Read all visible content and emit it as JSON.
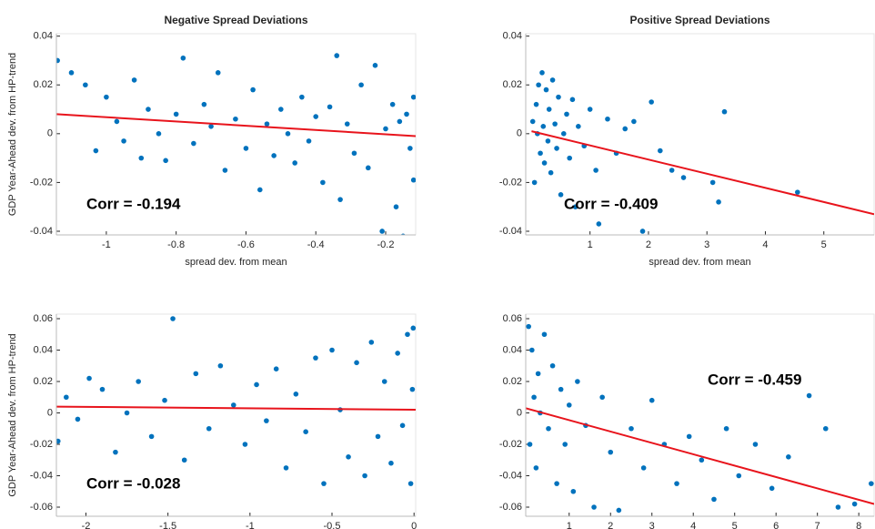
{
  "chart_data": [
    {
      "type": "scatter",
      "title": "Negative Spread Deviations",
      "xlabel": "spread dev. from mean",
      "ylabel": "GDP Year-Ahead dev. from HP-trend",
      "annotation": "Corr = -0.194",
      "color": "#0072bd",
      "xlim": [
        -1.143,
        -0.114
      ],
      "ylim": [
        -0.0415,
        0.041
      ],
      "xticks": [
        -1,
        -0.8,
        -0.6,
        -0.4,
        -0.2
      ],
      "yticks": [
        -0.04,
        -0.02,
        0,
        0.02,
        0.04
      ],
      "x": [
        -1.14,
        -1.1,
        -1.06,
        -1.03,
        -1.0,
        -0.97,
        -0.95,
        -0.92,
        -0.9,
        -0.88,
        -0.85,
        -0.83,
        -0.8,
        -0.78,
        -0.75,
        -0.72,
        -0.7,
        -0.68,
        -0.66,
        -0.63,
        -0.6,
        -0.58,
        -0.56,
        -0.54,
        -0.52,
        -0.5,
        -0.48,
        -0.46,
        -0.44,
        -0.42,
        -0.4,
        -0.38,
        -0.36,
        -0.34,
        -0.33,
        -0.31,
        -0.29,
        -0.27,
        -0.25,
        -0.23,
        -0.21,
        -0.2,
        -0.18,
        -0.17,
        -0.16,
        -0.15,
        -0.14,
        -0.13,
        -0.12,
        -0.12
      ],
      "y": [
        0.03,
        0.025,
        0.02,
        -0.007,
        0.015,
        0.005,
        -0.003,
        0.022,
        -0.01,
        0.01,
        0.0,
        -0.011,
        0.008,
        0.031,
        -0.004,
        0.012,
        0.003,
        0.025,
        -0.015,
        0.006,
        -0.006,
        0.018,
        -0.023,
        0.004,
        -0.009,
        0.01,
        0.0,
        -0.012,
        0.015,
        -0.003,
        0.007,
        -0.02,
        0.011,
        0.032,
        -0.027,
        0.004,
        -0.008,
        0.02,
        -0.014,
        0.028,
        -0.04,
        0.002,
        0.012,
        -0.03,
        0.005,
        -0.042,
        0.008,
        -0.006,
        0.015,
        -0.019
      ],
      "fit": {
        "x": [
          -1.143,
          -0.114
        ],
        "y": [
          0.008,
          -0.001
        ],
        "color": "#e8141c"
      }
    },
    {
      "type": "scatter",
      "title": "Positive Spread Deviations",
      "xlabel": "spread dev. from mean",
      "annotation": "Corr = -0.409",
      "color": "#0072bd",
      "xlim": [
        -0.1,
        5.86
      ],
      "ylim": [
        -0.0415,
        0.041
      ],
      "xticks": [
        1,
        2,
        3,
        4,
        5
      ],
      "yticks": [
        -0.04,
        -0.02,
        0,
        0.02,
        0.04
      ],
      "x": [
        0.02,
        0.05,
        0.08,
        0.1,
        0.12,
        0.15,
        0.18,
        0.2,
        0.22,
        0.25,
        0.28,
        0.3,
        0.33,
        0.36,
        0.4,
        0.43,
        0.46,
        0.5,
        0.55,
        0.6,
        0.65,
        0.7,
        0.75,
        0.8,
        0.9,
        1.0,
        1.1,
        1.15,
        1.3,
        1.45,
        1.6,
        1.75,
        1.9,
        2.05,
        2.2,
        2.4,
        2.6,
        3.1,
        3.2,
        3.3,
        4.55
      ],
      "y": [
        0.005,
        -0.02,
        0.012,
        0.0,
        0.02,
        -0.008,
        0.025,
        0.003,
        -0.012,
        0.018,
        -0.003,
        0.01,
        -0.016,
        0.022,
        0.004,
        -0.006,
        0.015,
        -0.025,
        0.0,
        0.008,
        -0.01,
        0.014,
        -0.03,
        0.003,
        -0.005,
        0.01,
        -0.015,
        -0.037,
        0.006,
        -0.008,
        0.002,
        0.005,
        -0.04,
        0.013,
        -0.007,
        -0.015,
        -0.018,
        -0.02,
        -0.028,
        0.009,
        -0.024
      ],
      "fit": {
        "x": [
          0.0,
          5.86
        ],
        "y": [
          0.001,
          -0.033
        ],
        "color": "#e8141c"
      }
    },
    {
      "type": "scatter",
      "ylabel": "GDP Year-Ahead dev. from HP-trend",
      "annotation": "Corr = -0.028",
      "color": "#0072bd",
      "xlim": [
        -2.18,
        0.01
      ],
      "ylim": [
        -0.0658,
        0.0629
      ],
      "xticks": [
        -2,
        -1.5,
        -1,
        -0.5,
        0
      ],
      "yticks": [
        -0.06,
        -0.04,
        -0.02,
        0,
        0.02,
        0.04,
        0.06
      ],
      "x": [
        -2.17,
        -2.12,
        -2.05,
        -1.98,
        -1.9,
        -1.82,
        -1.75,
        -1.68,
        -1.6,
        -1.52,
        -1.47,
        -1.4,
        -1.33,
        -1.25,
        -1.18,
        -1.1,
        -1.03,
        -0.96,
        -0.9,
        -0.84,
        -0.78,
        -0.72,
        -0.66,
        -0.6,
        -0.55,
        -0.5,
        -0.45,
        -0.4,
        -0.35,
        -0.3,
        -0.26,
        -0.22,
        -0.18,
        -0.14,
        -0.1,
        -0.07,
        -0.04,
        -0.02,
        -0.01,
        -0.005
      ],
      "y": [
        -0.018,
        0.01,
        -0.004,
        0.022,
        0.015,
        -0.025,
        0.0,
        0.02,
        -0.015,
        0.008,
        0.06,
        -0.03,
        0.025,
        -0.01,
        0.03,
        0.005,
        -0.02,
        0.018,
        -0.005,
        0.028,
        -0.035,
        0.012,
        -0.012,
        0.035,
        -0.045,
        0.04,
        0.002,
        -0.028,
        0.032,
        -0.04,
        0.045,
        -0.015,
        0.02,
        -0.032,
        0.038,
        -0.008,
        0.05,
        -0.045,
        0.015,
        0.054
      ],
      "fit": {
        "x": [
          -2.18,
          0.01
        ],
        "y": [
          0.004,
          0.002
        ],
        "color": "#e8141c"
      }
    },
    {
      "type": "scatter",
      "annotation": "Corr = -0.459",
      "color": "#0072bd",
      "xlim": [
        -0.05,
        8.37
      ],
      "ylim": [
        -0.0658,
        0.0629
      ],
      "xticks": [
        1,
        2,
        3,
        4,
        5,
        6,
        7,
        8
      ],
      "yticks": [
        -0.06,
        -0.04,
        -0.02,
        0,
        0.02,
        0.04,
        0.06
      ],
      "x": [
        0.02,
        0.05,
        0.1,
        0.15,
        0.2,
        0.25,
        0.3,
        0.4,
        0.5,
        0.6,
        0.7,
        0.8,
        0.9,
        1.0,
        1.1,
        1.2,
        1.4,
        1.6,
        1.8,
        2.0,
        2.2,
        2.5,
        2.8,
        3.0,
        3.3,
        3.6,
        3.9,
        4.2,
        4.5,
        4.8,
        5.1,
        5.5,
        5.9,
        6.3,
        6.8,
        7.2,
        7.5,
        7.9,
        8.3
      ],
      "y": [
        0.055,
        -0.02,
        0.04,
        0.01,
        -0.035,
        0.025,
        0.0,
        0.05,
        -0.01,
        0.03,
        -0.045,
        0.015,
        -0.02,
        0.005,
        -0.05,
        0.02,
        -0.008,
        -0.06,
        0.01,
        -0.025,
        -0.062,
        -0.01,
        -0.035,
        0.008,
        -0.02,
        -0.045,
        -0.015,
        -0.03,
        -0.055,
        -0.01,
        -0.04,
        -0.02,
        -0.048,
        -0.028,
        0.011,
        -0.01,
        -0.06,
        -0.058,
        -0.045
      ],
      "fit": {
        "x": [
          -0.05,
          8.37
        ],
        "y": [
          0.003,
          -0.058
        ],
        "color": "#e8141c"
      }
    }
  ]
}
